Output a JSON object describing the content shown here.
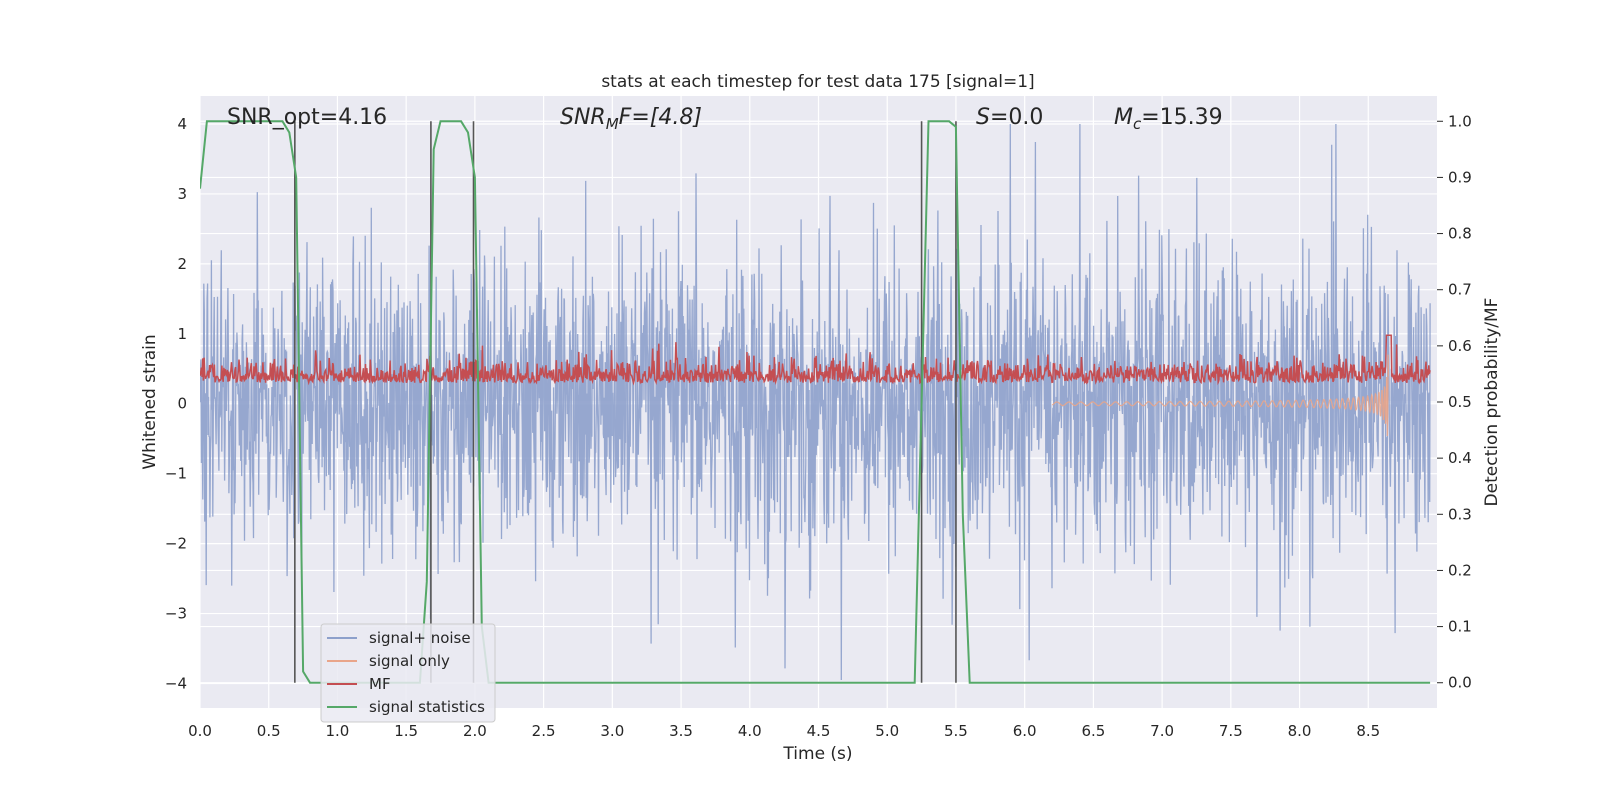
{
  "chart_data": {
    "type": "line",
    "title": "stats at each timestep for test data 175 [signal=1]",
    "xlabel": "Time (s)",
    "ylabel": "Whitened strain",
    "ylabel_right": "Detection probability/MF",
    "xlim": [
      0.0,
      9.0
    ],
    "ylim": [
      -4.35,
      4.4
    ],
    "ylim_right": [
      -0.045,
      1.045
    ],
    "xticks": [
      "0.0",
      "0.5",
      "1.0",
      "1.5",
      "2.0",
      "2.5",
      "3.0",
      "3.5",
      "4.0",
      "4.5",
      "5.0",
      "5.5",
      "6.0",
      "6.5",
      "7.0",
      "7.5",
      "8.0",
      "8.5"
    ],
    "xtick_values": [
      0.0,
      0.5,
      1.0,
      1.5,
      2.0,
      2.5,
      3.0,
      3.5,
      4.0,
      4.5,
      5.0,
      5.5,
      6.0,
      6.5,
      7.0,
      7.5,
      8.0,
      8.5
    ],
    "yticks": [
      "4",
      "3",
      "2",
      "1",
      "0",
      "−1",
      "−2",
      "−3",
      "−4"
    ],
    "ytick_values": [
      4,
      3,
      2,
      1,
      0,
      -1,
      -2,
      -3,
      -4
    ],
    "yticks_right": [
      "1.0",
      "0.9",
      "0.8",
      "0.7",
      "0.6",
      "0.5",
      "0.4",
      "0.3",
      "0.2",
      "0.1",
      "0.0"
    ],
    "ytick_right_values": [
      1.0,
      0.9,
      0.8,
      0.7,
      0.6,
      0.5,
      0.4,
      0.3,
      0.2,
      0.1,
      0.0
    ],
    "grid": true,
    "legend_position": "lower-left",
    "annotations": {
      "snr_opt": "SNR_opt=4.16",
      "snr_mf_base": "SNR",
      "snr_mf_sub": "M",
      "snr_mf_rest": "F=[4.8]",
      "s_var": "S",
      "s_val": "=0.0",
      "mc_base": "M",
      "mc_sub": "c",
      "mc_val": "=15.39"
    },
    "series": [
      {
        "name": "signal+ noise",
        "color": "#8da0cb",
        "axis": "left",
        "description_values": "white noise, approx ±2 typical amplitude, peaks to ±4"
      },
      {
        "name": "signal only",
        "color": "#e9a58a",
        "axis": "left",
        "chirp_end_time": 8.65,
        "chirp_start_time": 6.2,
        "chirp_peak_amplitude": 0.95
      },
      {
        "name": "MF",
        "color": "#c44e52",
        "axis": "left"
      },
      {
        "name": "signal statistics",
        "color": "#55a868",
        "axis": "right",
        "x": [
          0.0,
          0.05,
          0.6,
          0.65,
          0.7,
          0.75,
          0.8,
          0.85,
          1.6,
          1.65,
          1.7,
          1.75,
          1.9,
          1.95,
          2.0,
          2.05,
          2.1,
          5.15,
          5.2,
          5.25,
          5.3,
          5.45,
          5.5,
          5.55,
          5.6,
          8.95
        ],
        "values": [
          0.88,
          1.0,
          1.0,
          0.98,
          0.9,
          0.02,
          0.0,
          0.0,
          0.0,
          0.18,
          0.95,
          1.0,
          1.0,
          0.98,
          0.9,
          0.1,
          0.0,
          0.0,
          0.0,
          0.5,
          1.0,
          1.0,
          0.99,
          0.3,
          0.0,
          0.0
        ]
      }
    ],
    "vertical_markers": [
      0.69,
      1.68,
      1.99,
      5.25,
      5.5
    ],
    "colors": {
      "axes_bg": "#eaeaf2",
      "grid": "#ffffff",
      "marker": "#555555"
    }
  },
  "legend": {
    "items": [
      {
        "label": "signal+ noise",
        "color": "#8da0cb"
      },
      {
        "label": "signal only",
        "color": "#e9a58a"
      },
      {
        "label": "MF",
        "color": "#c44e52"
      },
      {
        "label": "signal statistics",
        "color": "#55a868"
      }
    ]
  }
}
